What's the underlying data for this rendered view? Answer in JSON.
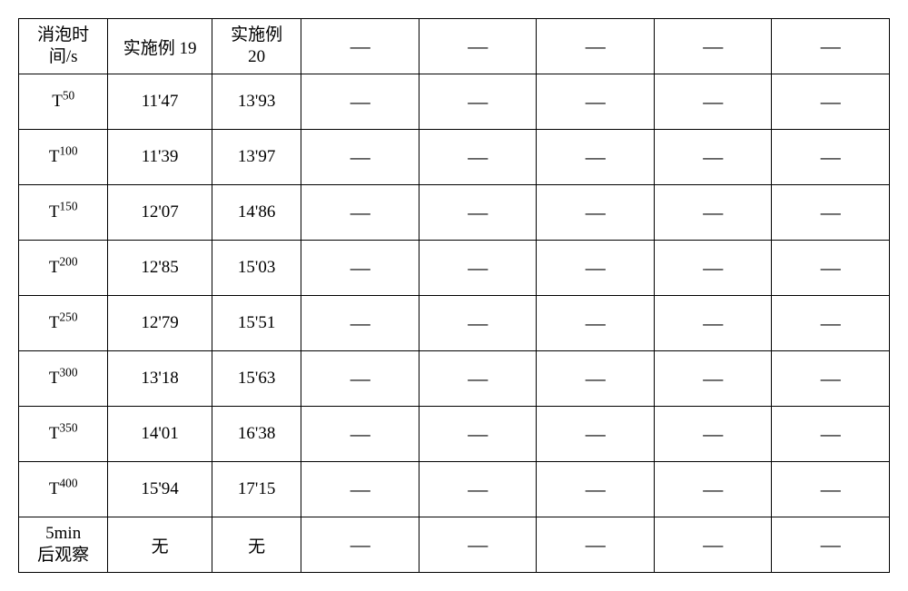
{
  "table": {
    "type": "table",
    "border_color": "#000000",
    "background_color": "#ffffff",
    "text_color": "#000000",
    "font_family": "SimSun",
    "body_fontsize": 19,
    "dash_fontsize": 22,
    "columns": [
      {
        "key": "label",
        "width": 92,
        "align": "center"
      },
      {
        "key": "ex19",
        "width": 110,
        "align": "center"
      },
      {
        "key": "ex20",
        "width": 92,
        "align": "center"
      },
      {
        "key": "c3",
        "width": 130,
        "align": "center"
      },
      {
        "key": "c4",
        "width": 130,
        "align": "center"
      },
      {
        "key": "c5",
        "width": 130,
        "align": "center"
      },
      {
        "key": "c6",
        "width": 130,
        "align": "center"
      },
      {
        "key": "c7",
        "width": 130,
        "align": "center"
      }
    ],
    "header": {
      "label_line1": "消泡时",
      "label_line2": "间/s",
      "ex19": "实施例 19",
      "ex20_line1": "实施例",
      "ex20_line2": "20",
      "c3": "—",
      "c4": "—",
      "c5": "—",
      "c6": "—",
      "c7": "—"
    },
    "rows": [
      {
        "label_base": "T",
        "label_sup": "50",
        "ex19": "11'47",
        "ex20": "13'93",
        "c3": "—",
        "c4": "—",
        "c5": "—",
        "c6": "—",
        "c7": "—"
      },
      {
        "label_base": "T",
        "label_sup": "100",
        "ex19": "11'39",
        "ex20": "13'97",
        "c3": "—",
        "c4": "—",
        "c5": "—",
        "c6": "—",
        "c7": "—"
      },
      {
        "label_base": "T",
        "label_sup": "150",
        "ex19": "12'07",
        "ex20": "14'86",
        "c3": "—",
        "c4": "—",
        "c5": "—",
        "c6": "—",
        "c7": "—"
      },
      {
        "label_base": "T",
        "label_sup": "200",
        "ex19": "12'85",
        "ex20": "15'03",
        "c3": "—",
        "c4": "—",
        "c5": "—",
        "c6": "—",
        "c7": "—"
      },
      {
        "label_base": "T",
        "label_sup": "250",
        "ex19": "12'79",
        "ex20": "15'51",
        "c3": "—",
        "c4": "—",
        "c5": "—",
        "c6": "—",
        "c7": "—"
      },
      {
        "label_base": "T",
        "label_sup": "300",
        "ex19": "13'18",
        "ex20": "15'63",
        "c3": "—",
        "c4": "—",
        "c5": "—",
        "c6": "—",
        "c7": "—"
      },
      {
        "label_base": "T",
        "label_sup": "350",
        "ex19": "14'01",
        "ex20": "16'38",
        "c3": "—",
        "c4": "—",
        "c5": "—",
        "c6": "—",
        "c7": "—"
      },
      {
        "label_base": "T",
        "label_sup": "400",
        "ex19": "15'94",
        "ex20": "17'15",
        "c3": "—",
        "c4": "—",
        "c5": "—",
        "c6": "—",
        "c7": "—"
      }
    ],
    "footer": {
      "label_line1": "5min",
      "label_line2": "后观察",
      "ex19": "无",
      "ex20": "无",
      "c3": "—",
      "c4": "—",
      "c5": "—",
      "c6": "—",
      "c7": "—"
    }
  }
}
